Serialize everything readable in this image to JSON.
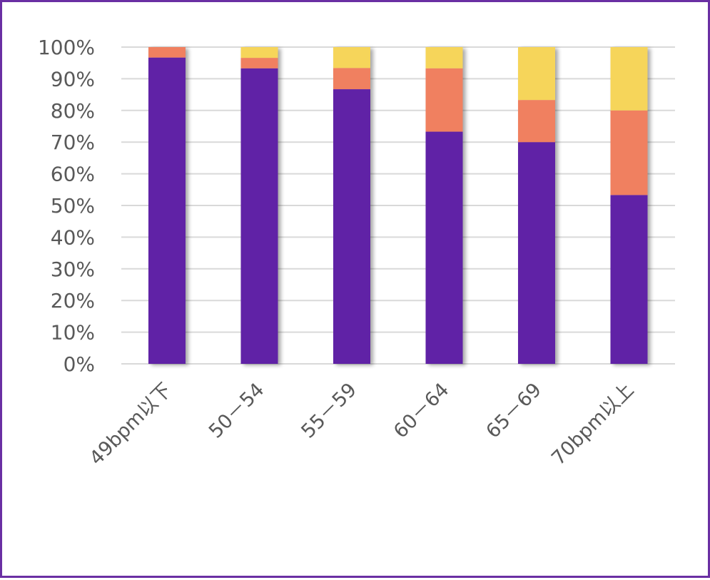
{
  "chart_data": {
    "type": "bar",
    "stacked": true,
    "normalized": true,
    "categories": [
      "49bpm以下",
      "50－54",
      "55－59",
      "60－64",
      "65－69",
      "70bpm以上"
    ],
    "series": [
      {
        "color": "#6121a6",
        "values": [
          96.7,
          93.3,
          86.7,
          73.3,
          70.0,
          53.3
        ]
      },
      {
        "color": "#f08060",
        "values": [
          3.3,
          3.3,
          6.7,
          20.0,
          13.3,
          26.7
        ]
      },
      {
        "color": "#f6d55a",
        "values": [
          0.0,
          3.4,
          6.6,
          6.7,
          16.7,
          20.0
        ]
      }
    ],
    "yticks": [
      "0%",
      "10%",
      "20%",
      "30%",
      "40%",
      "50%",
      "60%",
      "70%",
      "80%",
      "90%",
      "100%"
    ],
    "ylim": [
      0,
      100
    ],
    "grid": true,
    "legend": "none"
  }
}
